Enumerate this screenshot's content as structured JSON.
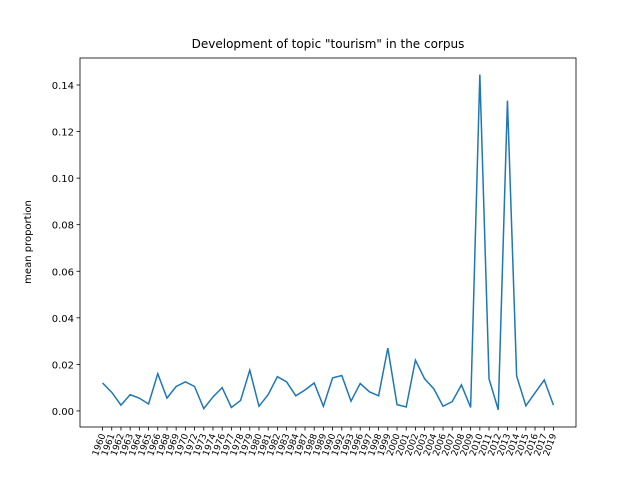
{
  "chart_data": {
    "type": "line",
    "title": "Development of topic \"tourism\" in the corpus",
    "ylabel": "mean proportion",
    "categories": [
      "1960",
      "1961",
      "1962",
      "1963",
      "1964",
      "1965",
      "1966",
      "1968",
      "1969",
      "1970",
      "1972",
      "1973",
      "1974",
      "1976",
      "1977",
      "1978",
      "1979",
      "1980",
      "1981",
      "1982",
      "1983",
      "1984",
      "1987",
      "1988",
      "1989",
      "1990",
      "1992",
      "1993",
      "1996",
      "1997",
      "1998",
      "1999",
      "2000",
      "2001",
      "2002",
      "2003",
      "2004",
      "2006",
      "2007",
      "2008",
      "2009",
      "2010",
      "2011",
      "2012",
      "2013",
      "2014",
      "2015",
      "2016",
      "2017",
      "2019"
    ],
    "series": [
      {
        "name": "tourism",
        "color": "#1f77b4",
        "values": [
          0.012,
          0.008,
          0.0025,
          0.007,
          0.0055,
          0.003,
          0.016,
          0.0055,
          0.0105,
          0.0125,
          0.0105,
          0.001,
          0.006,
          0.01,
          0.0015,
          0.0045,
          0.0175,
          0.002,
          0.007,
          0.0147,
          0.0125,
          0.0065,
          0.009,
          0.012,
          0.002,
          0.0142,
          0.0152,
          0.0042,
          0.0118,
          0.0082,
          0.0065,
          0.027,
          0.0027,
          0.0017,
          0.0218,
          0.0138,
          0.0095,
          0.002,
          0.004,
          0.0112,
          0.0015,
          0.1445,
          0.0138,
          0.0005,
          0.1333,
          0.015,
          0.0022,
          0.0078,
          0.0133,
          0.0025
        ]
      }
    ],
    "ylim": [
      -0.0069,
      0.1516
    ],
    "yticks": [
      {
        "value": 0,
        "label": "0.00"
      },
      {
        "value": 0.02,
        "label": "0.02"
      },
      {
        "value": 0.04,
        "label": "0.04"
      },
      {
        "value": 0.06,
        "label": "0.06"
      },
      {
        "value": 0.08,
        "label": "0.08"
      },
      {
        "value": 0.1,
        "label": "0.10"
      },
      {
        "value": 0.12,
        "label": "0.12"
      },
      {
        "value": 0.14,
        "label": "0.14"
      }
    ]
  }
}
